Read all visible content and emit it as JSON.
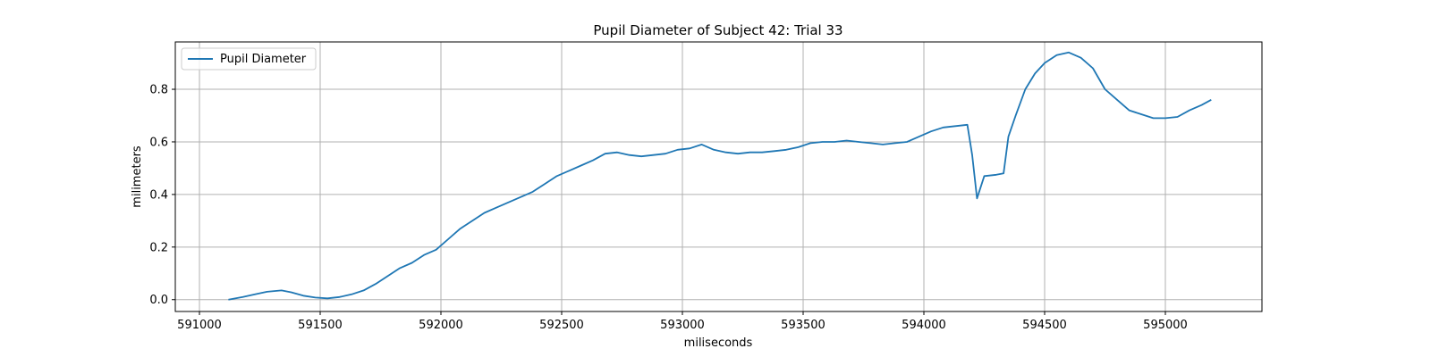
{
  "chart_data": {
    "type": "line",
    "title": "Pupil Diameter of Subject 42: Trial 33",
    "xlabel": "miliseconds",
    "ylabel": "milimeters",
    "xlim": [
      590900,
      595400
    ],
    "ylim": [
      -0.045,
      0.98
    ],
    "x_ticks": [
      591000,
      591500,
      592000,
      592500,
      593000,
      593500,
      594000,
      594500,
      595000
    ],
    "x_tick_labels": [
      "591000",
      "591500",
      "592000",
      "592500",
      "593000",
      "593500",
      "594000",
      "594500",
      "595000"
    ],
    "y_ticks": [
      0.0,
      0.2,
      0.4,
      0.6,
      0.8
    ],
    "y_tick_labels": [
      "0.0",
      "0.2",
      "0.4",
      "0.6",
      "0.8"
    ],
    "grid": true,
    "legend_position": "upper-left",
    "series": [
      {
        "name": "Pupil Diameter",
        "color": "#1f77b4",
        "x": [
          591120,
          591180,
          591230,
          591280,
          591340,
          591380,
          591430,
          591480,
          591530,
          591580,
          591630,
          591680,
          591730,
          591780,
          591830,
          591880,
          591930,
          591980,
          592030,
          592080,
          592130,
          592180,
          592230,
          592280,
          592330,
          592380,
          592430,
          592480,
          592530,
          592580,
          592630,
          592680,
          592730,
          592780,
          592830,
          592880,
          592930,
          592980,
          593030,
          593080,
          593130,
          593180,
          593230,
          593280,
          593330,
          593380,
          593430,
          593480,
          593530,
          593580,
          593630,
          593680,
          593730,
          593780,
          593830,
          593880,
          593930,
          593980,
          594030,
          594080,
          594130,
          594180,
          594200,
          594220,
          594250,
          594300,
          594330,
          594350,
          594380,
          594420,
          594460,
          594500,
          594550,
          594600,
          594650,
          594700,
          594750,
          594800,
          594850,
          594900,
          594950,
          595000,
          595050,
          595100,
          595150,
          595190
        ],
        "y": [
          0.0,
          0.01,
          0.02,
          0.03,
          0.035,
          0.028,
          0.015,
          0.008,
          0.005,
          0.01,
          0.02,
          0.035,
          0.06,
          0.09,
          0.12,
          0.14,
          0.17,
          0.19,
          0.23,
          0.27,
          0.3,
          0.33,
          0.35,
          0.37,
          0.39,
          0.41,
          0.44,
          0.47,
          0.49,
          0.51,
          0.53,
          0.555,
          0.56,
          0.55,
          0.545,
          0.55,
          0.555,
          0.57,
          0.575,
          0.59,
          0.57,
          0.56,
          0.555,
          0.56,
          0.56,
          0.565,
          0.57,
          0.58,
          0.595,
          0.6,
          0.6,
          0.605,
          0.6,
          0.595,
          0.59,
          0.595,
          0.6,
          0.62,
          0.64,
          0.655,
          0.66,
          0.665,
          0.55,
          0.385,
          0.47,
          0.475,
          0.48,
          0.62,
          0.7,
          0.8,
          0.86,
          0.9,
          0.93,
          0.94,
          0.92,
          0.88,
          0.8,
          0.76,
          0.72,
          0.705,
          0.69,
          0.69,
          0.695,
          0.72,
          0.74,
          0.76
        ]
      }
    ]
  }
}
